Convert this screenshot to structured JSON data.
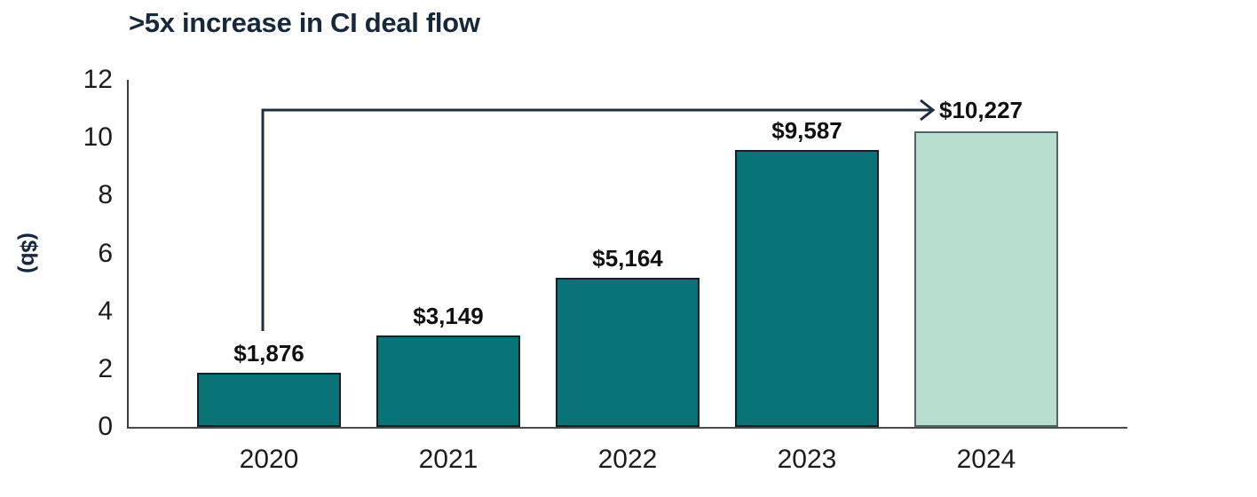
{
  "chart_data": {
    "type": "bar",
    "title": ">5x increase in CI deal flow",
    "ylabel": "($b)",
    "xlabel": "",
    "categories": [
      "2020",
      "2021",
      "2022",
      "2023",
      "2024"
    ],
    "values": [
      1876,
      3149,
      5164,
      9587,
      10227
    ],
    "value_labels": [
      "$1,876",
      "$3,149",
      "$5,164",
      "$9,587",
      "$10,227"
    ],
    "value_unit_divisor": 1000,
    "ylim": [
      0,
      12
    ],
    "yticks": [
      0,
      2,
      4,
      6,
      8,
      10,
      12
    ],
    "grid": false,
    "legend": false,
    "colors": {
      "title": "#16283a",
      "bar_fill": "#0A7378",
      "bar_border": "#132028",
      "highlight_bar_fill": "#B7DECE",
      "highlight_bar_border": "#52646a",
      "arrow": "#1e2e3e",
      "value_label": "#101010",
      "tick_label": "#1c1c1c"
    },
    "highlight_index": 4,
    "annotation": {
      "type": "elbow-arrow",
      "from_category": "2020",
      "to_value_label": "$10,227",
      "meaning": "greater than 5x increase from 2020 to 2024"
    }
  }
}
